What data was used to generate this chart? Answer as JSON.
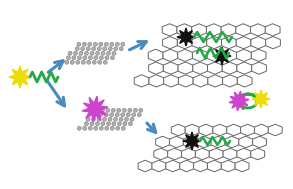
{
  "bg_color": "#ffffff",
  "arrow_color": "#4a8bbf",
  "green_color": "#22aa44",
  "yellow_color": "#eedd00",
  "magenta_color": "#cc44cc",
  "black_color": "#111111",
  "gray_fill": "#b0b0b0",
  "gray_edge": "#666666",
  "white_fill": "#ffffff",
  "figsize": [
    2.93,
    1.89
  ],
  "dpi": 100
}
